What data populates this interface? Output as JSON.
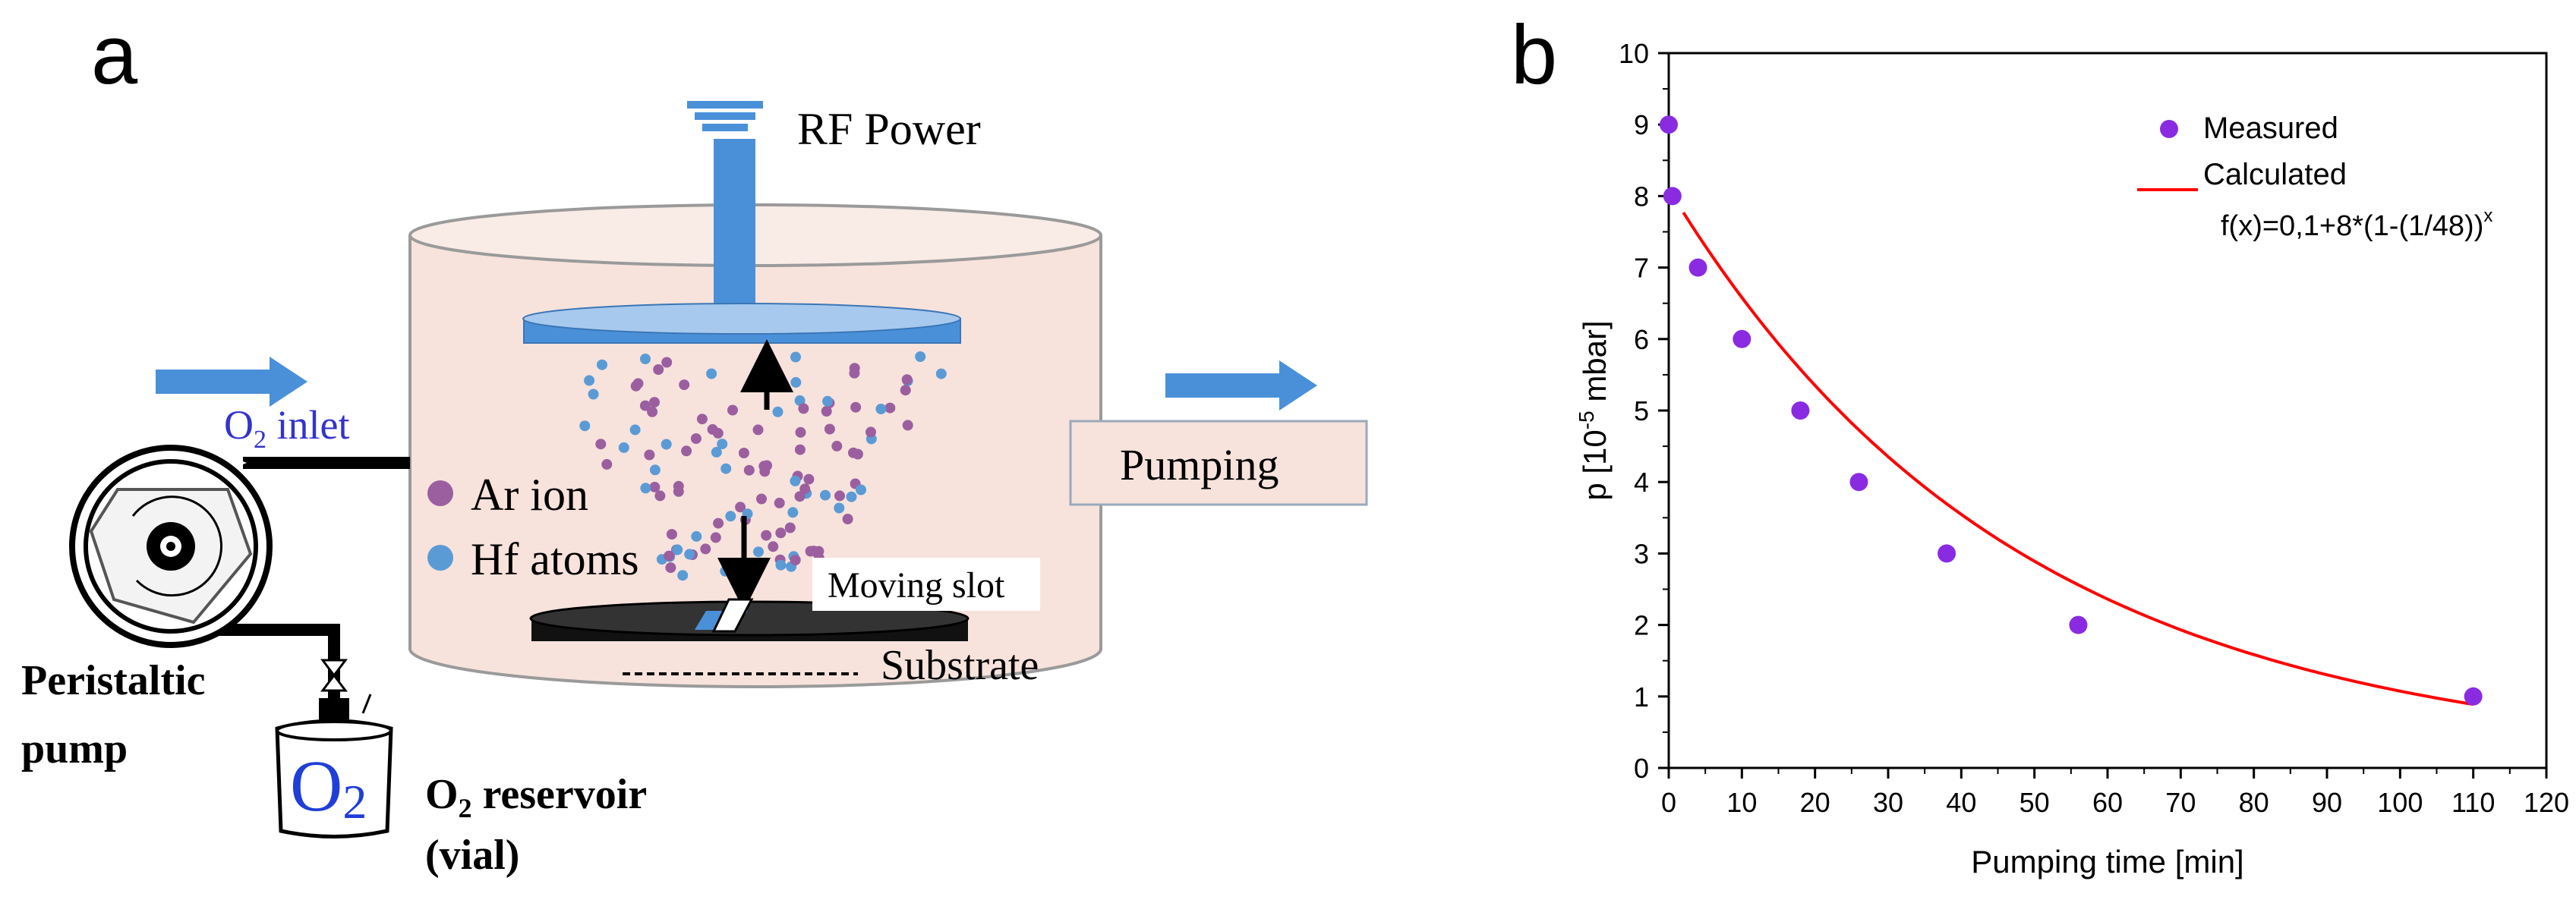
{
  "panel_a": {
    "label": "a",
    "rf_power": "RF Power",
    "o2_inlet_main": "O",
    "o2_inlet_sub": "2",
    "o2_inlet_rest": " inlet",
    "pumping": "Pumping",
    "legend_ar": "Ar ion",
    "legend_hf": "Hf atoms",
    "moving_slot": "Moving slot",
    "substrate": "Substrate",
    "pump_line1": "Peristaltic",
    "pump_line2": "pump",
    "reservoir_symbol_main": "O",
    "reservoir_symbol_sub": "2",
    "reservoir_label_main": "O",
    "reservoir_label_sub": "2",
    "reservoir_label_rest": " reservoir",
    "reservoir_label_line2": "(vial)",
    "colors": {
      "ar_ion": "#9b5fa0",
      "hf_atom": "#5b9bd5",
      "chamber_fill": "#f7e3dc",
      "electrode": "#4a90d9",
      "arrow": "#4a90d9",
      "o2_text": "#3333cc"
    }
  },
  "panel_b": {
    "label": "b",
    "chart_data": {
      "type": "scatter",
      "xlabel": "Pumping time [min]",
      "ylabel_main": "p [10",
      "ylabel_sup": "-5",
      "ylabel_end": " mbar]",
      "xlim": [
        0,
        120
      ],
      "ylim": [
        0,
        10
      ],
      "xticks": [
        0,
        10,
        20,
        30,
        40,
        50,
        60,
        70,
        80,
        90,
        100,
        110,
        120
      ],
      "yticks": [
        0,
        1,
        2,
        3,
        4,
        5,
        6,
        7,
        8,
        9,
        10
      ],
      "legend": {
        "measured": "Measured",
        "calculated": "Calculated",
        "formula_main": "f(x)=0,1+8*(1-(1/48))",
        "formula_sup": "x"
      },
      "series": [
        {
          "name": "Measured",
          "kind": "scatter",
          "color": "#8a2be2",
          "x": [
            0,
            0.5,
            4,
            10,
            18,
            26,
            38,
            56,
            110
          ],
          "y": [
            9,
            8,
            7,
            6,
            5,
            4,
            3,
            2,
            1
          ]
        },
        {
          "name": "Calculated",
          "kind": "line",
          "color": "#ff0000",
          "function": "0.1+8*(1-1/48)^x",
          "x_range": [
            2,
            110
          ]
        }
      ]
    }
  }
}
